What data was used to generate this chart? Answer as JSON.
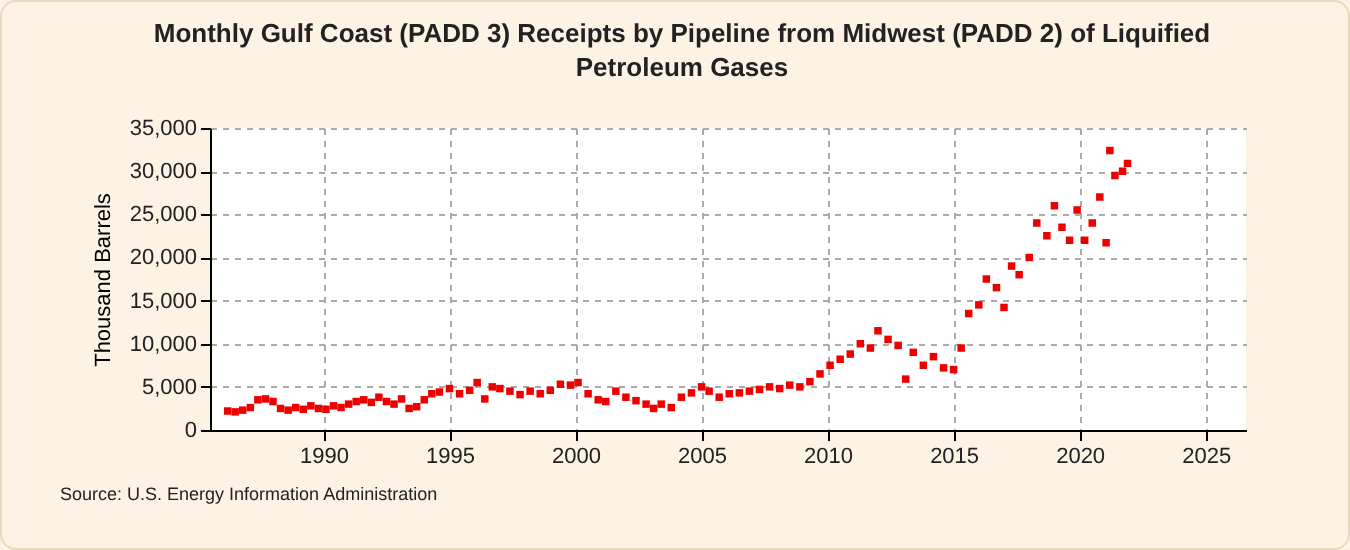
{
  "chart_data": {
    "type": "scatter",
    "title": "Monthly Gulf Coast (PADD 3) Receipts by Pipeline from Midwest (PADD 2) of Liquified Petroleum Gases",
    "ylabel": "Thousand Barrels",
    "annotations": [
      "Source: U.S. Energy Information Administration"
    ],
    "marker": "square",
    "grid": true,
    "legend": false,
    "xlim": [
      1985.5,
      2026.6
    ],
    "xticks": [
      1990,
      1995,
      2000,
      2005,
      2010,
      2015,
      2020,
      2025
    ],
    "ylim": [
      0,
      35000
    ],
    "yticks": [
      {
        "value": 0,
        "label": "0"
      },
      {
        "value": 5000,
        "label": "5,000"
      },
      {
        "value": 10000,
        "label": "10,000"
      },
      {
        "value": 15000,
        "label": "15,000"
      },
      {
        "value": 20000,
        "label": "20,000"
      },
      {
        "value": 25000,
        "label": "25,000"
      },
      {
        "value": 30000,
        "label": "30,000"
      },
      {
        "value": 35000,
        "label": "35,000"
      }
    ],
    "series": [
      {
        "color": "#ee0000",
        "x": [
          1986.2,
          1986.5,
          1986.8,
          1987.1,
          1987.4,
          1987.7,
          1988.0,
          1988.3,
          1988.6,
          1988.9,
          1989.2,
          1989.5,
          1989.8,
          1990.1,
          1990.4,
          1990.7,
          1991.0,
          1991.3,
          1991.6,
          1991.9,
          1992.2,
          1992.5,
          1992.8,
          1993.1,
          1993.4,
          1993.7,
          1994.0,
          1994.3,
          1994.6,
          1995.0,
          1995.4,
          1995.8,
          1996.1,
          1996.4,
          1996.7,
          1997.0,
          1997.4,
          1997.8,
          1998.2,
          1998.6,
          1999.0,
          1999.4,
          1999.8,
          2000.1,
          2000.5,
          2000.9,
          2001.2,
          2001.6,
          2002.0,
          2002.4,
          2002.8,
          2003.1,
          2003.4,
          2003.8,
          2004.2,
          2004.6,
          2005.0,
          2005.3,
          2005.7,
          2006.1,
          2006.5,
          2006.9,
          2007.3,
          2007.7,
          2008.1,
          2008.5,
          2008.9,
          2009.3,
          2009.7,
          2010.1,
          2010.5,
          2010.9,
          2011.3,
          2011.7,
          2012.0,
          2012.4,
          2012.8,
          2013.1,
          2013.4,
          2013.8,
          2014.2,
          2014.6,
          2015.0,
          2015.3,
          2015.6,
          2016.0,
          2016.3,
          2016.7,
          2017.0,
          2017.3,
          2017.6,
          2018.0,
          2018.3,
          2018.7,
          2019.0,
          2019.3,
          2019.6,
          2019.9,
          2020.2,
          2020.5,
          2020.8,
          2021.05,
          2021.2,
          2021.4,
          2021.7,
          2021.9
        ],
        "values": [
          2200,
          2100,
          2300,
          2600,
          3500,
          3600,
          3300,
          2500,
          2300,
          2600,
          2400,
          2800,
          2500,
          2400,
          2800,
          2600,
          3000,
          3300,
          3500,
          3200,
          3800,
          3300,
          3000,
          3600,
          2500,
          2700,
          3500,
          4200,
          4400,
          4800,
          4200,
          4600,
          5500,
          3600,
          5000,
          4800,
          4500,
          4100,
          4500,
          4200,
          4600,
          5300,
          5200,
          5500,
          4200,
          3500,
          3300,
          4500,
          3800,
          3400,
          3000,
          2500,
          3000,
          2600,
          3800,
          4300,
          5000,
          4500,
          3800,
          4200,
          4300,
          4500,
          4700,
          5000,
          4800,
          5200,
          5000,
          5600,
          6500,
          7500,
          8200,
          8800,
          10000,
          9500,
          11500,
          10500,
          9800,
          5900,
          9000,
          7500,
          8500,
          7200,
          7000,
          9500,
          13500,
          14500,
          17500,
          16500,
          14200,
          19000,
          18000,
          20000,
          24000,
          22500,
          26000,
          23500,
          22000,
          25500,
          22000,
          24000,
          27000,
          21700,
          32400,
          29500,
          30000,
          30900
        ]
      }
    ]
  }
}
